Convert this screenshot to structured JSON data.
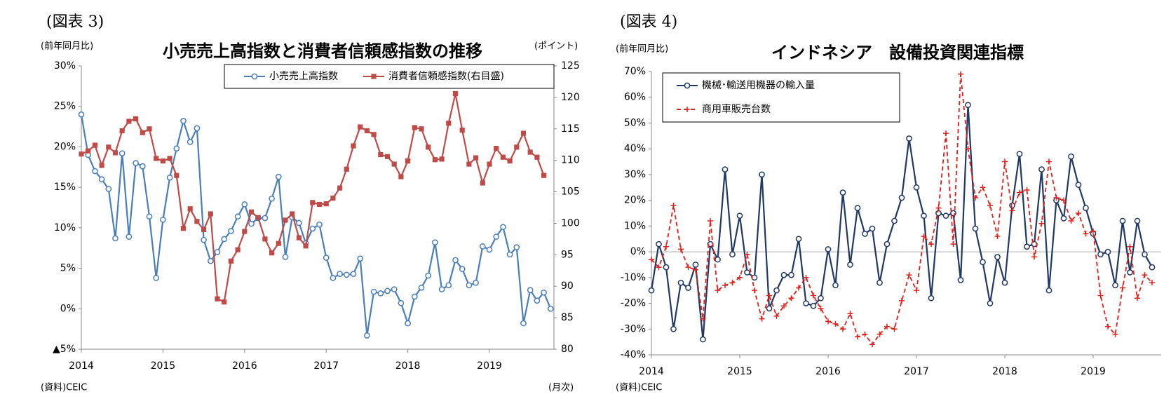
{
  "chart_data": [
    {
      "type": "line",
      "figure_label": "(図表 3)",
      "title": "小売売上高指数と消費者信頼感指数の推移",
      "y_label": "(前年同月比)",
      "y2_label": "(ポイント)",
      "x_note": "(月次)",
      "source": "(資料)CEIC",
      "legend": "upper right",
      "legend_layout": "row",
      "categories": [
        "2014",
        null,
        null,
        null,
        null,
        null,
        null,
        null,
        null,
        null,
        null,
        null,
        "2015",
        null,
        null,
        null,
        null,
        null,
        null,
        null,
        null,
        null,
        null,
        null,
        "2016",
        null,
        null,
        null,
        null,
        null,
        null,
        null,
        null,
        null,
        null,
        null,
        "2017",
        null,
        null,
        null,
        null,
        null,
        null,
        null,
        null,
        null,
        null,
        null,
        "2018",
        null,
        null,
        null,
        null,
        null,
        null,
        null,
        null,
        null,
        null,
        null,
        "2019",
        null,
        null,
        null,
        null,
        null,
        null,
        null,
        null,
        null
      ],
      "ylim": [
        -5,
        30
      ],
      "yticks": [
        {
          "value": -5,
          "label": "▲5%"
        },
        {
          "value": 0,
          "label": "0%"
        },
        {
          "value": 5,
          "label": "5%"
        },
        {
          "value": 10,
          "label": "10%"
        },
        {
          "value": 15,
          "label": "15%"
        },
        {
          "value": 20,
          "label": "20%"
        },
        {
          "value": 25,
          "label": "25%"
        },
        {
          "value": 30,
          "label": "30%"
        }
      ],
      "y2lim": [
        80,
        125
      ],
      "y2ticks": [
        80,
        85,
        90,
        95,
        100,
        105,
        110,
        115,
        120,
        125
      ],
      "series": [
        {
          "name": "小売売上高指数",
          "color": "#4a7ebb",
          "marker": "circle",
          "dash": false,
          "values": [
            24,
            19,
            17,
            16,
            14.8,
            8.7,
            19.2,
            8.9,
            18,
            17.6,
            11.4,
            3.8,
            11,
            16.2,
            19.8,
            23.2,
            20.6,
            22.3,
            8.5,
            5.9,
            7,
            8.6,
            9.6,
            11.4,
            12.9,
            10.5,
            11.2,
            11.2,
            13.6,
            16.3,
            6.4,
            11.3,
            10.6,
            8.1,
            9.9,
            10.4,
            6.3,
            3.8,
            4.3,
            4.2,
            4.3,
            6.2,
            -3.3,
            2.1,
            1.9,
            2.2,
            2.4,
            0.7,
            -1.8,
            1.5,
            2.6,
            4.1,
            8.2,
            2.4,
            2.9,
            6,
            4.9,
            2.9,
            3.2,
            7.7,
            7.3,
            8.9,
            10.1,
            6.7,
            7.6,
            -1.8,
            2.3,
            1,
            2,
            0
          ]
        },
        {
          "name": "消費者信頼感指数(右目盛)",
          "color": "#be4b48",
          "marker": "square",
          "dash": false,
          "axis": "y2",
          "values": [
            111,
            111.5,
            112.4,
            109.2,
            112.1,
            111.2,
            114.7,
            116.2,
            116.6,
            114.4,
            115,
            110.3,
            109.9,
            110.3,
            107.6,
            99.2,
            102.3,
            100.3,
            99,
            101.5,
            88,
            87.5,
            94,
            95.8,
            98.7,
            101.8,
            100.9,
            97.5,
            95.3,
            96.8,
            100.5,
            101.5,
            97.7,
            96.4,
            103.3,
            103,
            103.1,
            104,
            105.6,
            108.6,
            112.3,
            115.3,
            114.7,
            114.1,
            110.9,
            110.6,
            109.4,
            107.4,
            109.9,
            115.2,
            115,
            112.1,
            110.1,
            110.2,
            115.9,
            120.6,
            114.8,
            109.4,
            110.4,
            106.4,
            109.4,
            111.9,
            110.5,
            109.9,
            112.1,
            114.3,
            111.3,
            110.5,
            107.6,
            null
          ]
        }
      ]
    },
    {
      "type": "line",
      "figure_label": "(図表 4)",
      "title": "インドネシア　設備投資関連指標",
      "y_label": "(前年同月比)",
      "source": "(資料)CEIC",
      "legend": "upper left",
      "legend_layout": "column",
      "zero_line": true,
      "categories": [
        "2014",
        null,
        null,
        null,
        null,
        null,
        null,
        null,
        null,
        null,
        null,
        null,
        "2015",
        null,
        null,
        null,
        null,
        null,
        null,
        null,
        null,
        null,
        null,
        null,
        "2016",
        null,
        null,
        null,
        null,
        null,
        null,
        null,
        null,
        null,
        null,
        null,
        "2017",
        null,
        null,
        null,
        null,
        null,
        null,
        null,
        null,
        null,
        null,
        null,
        "2018",
        null,
        null,
        null,
        null,
        null,
        null,
        null,
        null,
        null,
        null,
        null,
        "2019",
        null,
        null,
        null,
        null,
        null,
        null,
        null,
        null
      ],
      "ylim": [
        -40,
        70
      ],
      "yticks": [
        {
          "value": -40,
          "label": "-40%"
        },
        {
          "value": -30,
          "label": "-30%"
        },
        {
          "value": -20,
          "label": "-20%"
        },
        {
          "value": -10,
          "label": "-10%"
        },
        {
          "value": 0,
          "label": "0%"
        },
        {
          "value": 10,
          "label": "10%"
        },
        {
          "value": 20,
          "label": "20%"
        },
        {
          "value": 30,
          "label": "30%"
        },
        {
          "value": 40,
          "label": "40%"
        },
        {
          "value": 50,
          "label": "50%"
        },
        {
          "value": 60,
          "label": "60%"
        },
        {
          "value": 70,
          "label": "70%"
        }
      ],
      "series": [
        {
          "name": "機械･輸送用機器の輸入量",
          "color": "#1f3864",
          "marker": "circle",
          "dash": false,
          "values": [
            -15,
            3,
            -6,
            -30,
            -12,
            -14,
            -5,
            -34,
            3,
            -3,
            32,
            -1,
            14,
            -8,
            -10,
            30,
            -22,
            -15,
            -9,
            -9,
            5,
            -20,
            -21,
            -18,
            1,
            -13,
            23,
            -5,
            17,
            7,
            9,
            -12,
            3,
            12,
            21,
            44,
            25,
            14,
            -18,
            15,
            14,
            15,
            -11,
            57,
            9,
            -4,
            -20,
            -2,
            -12,
            18,
            38,
            2,
            3,
            32,
            -15,
            20,
            13,
            37,
            26,
            17,
            7,
            -1,
            0,
            -13,
            12,
            -8,
            12,
            -1,
            -6
          ]
        },
        {
          "name": "商用車販売台数",
          "color": "#e0201b",
          "marker": "plus",
          "dash": true,
          "values": [
            -3,
            -6,
            2,
            18,
            1,
            -6,
            -7,
            -26,
            12,
            -15,
            -13,
            -12,
            -10,
            -1,
            -15,
            -26,
            -17,
            -25,
            -21,
            -18,
            -14,
            -10,
            -17,
            -22,
            -27,
            -28,
            -30,
            -24,
            -33,
            -32,
            -36,
            -32,
            -29,
            -30,
            -19,
            -9,
            -15,
            6,
            3,
            17,
            46,
            3,
            69,
            40,
            21,
            25,
            18,
            6,
            35,
            16,
            23,
            24,
            -2,
            11,
            35,
            21,
            20,
            12,
            15,
            7,
            8,
            -17,
            -29,
            -32,
            -14,
            2,
            -18,
            -9,
            -12
          ]
        }
      ]
    }
  ]
}
